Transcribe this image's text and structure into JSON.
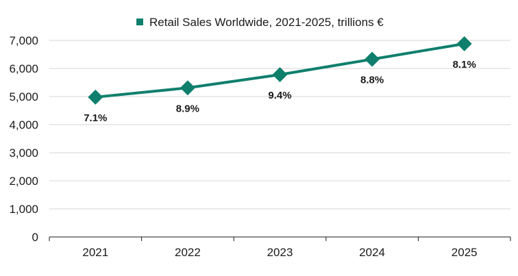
{
  "chart_data": {
    "type": "line",
    "x": [
      "2021",
      "2022",
      "2023",
      "2024",
      "2025"
    ],
    "series": [
      {
        "name": "Retail Sales Worldwide, 2021-2025, trillions €",
        "values": [
          4980,
          5310,
          5780,
          6330,
          6880
        ],
        "labels": [
          "7.1%",
          "8.9%",
          "9.4%",
          "8.8%",
          "8.1%"
        ],
        "color": "#0f7f6d"
      }
    ],
    "ylim": [
      0,
      7000
    ],
    "yticks": [
      "0",
      "1,000",
      "2,000",
      "3,000",
      "4,000",
      "5,000",
      "6,000",
      "7,000"
    ],
    "grid": true,
    "legend": "top-center",
    "marker": "diamond"
  }
}
